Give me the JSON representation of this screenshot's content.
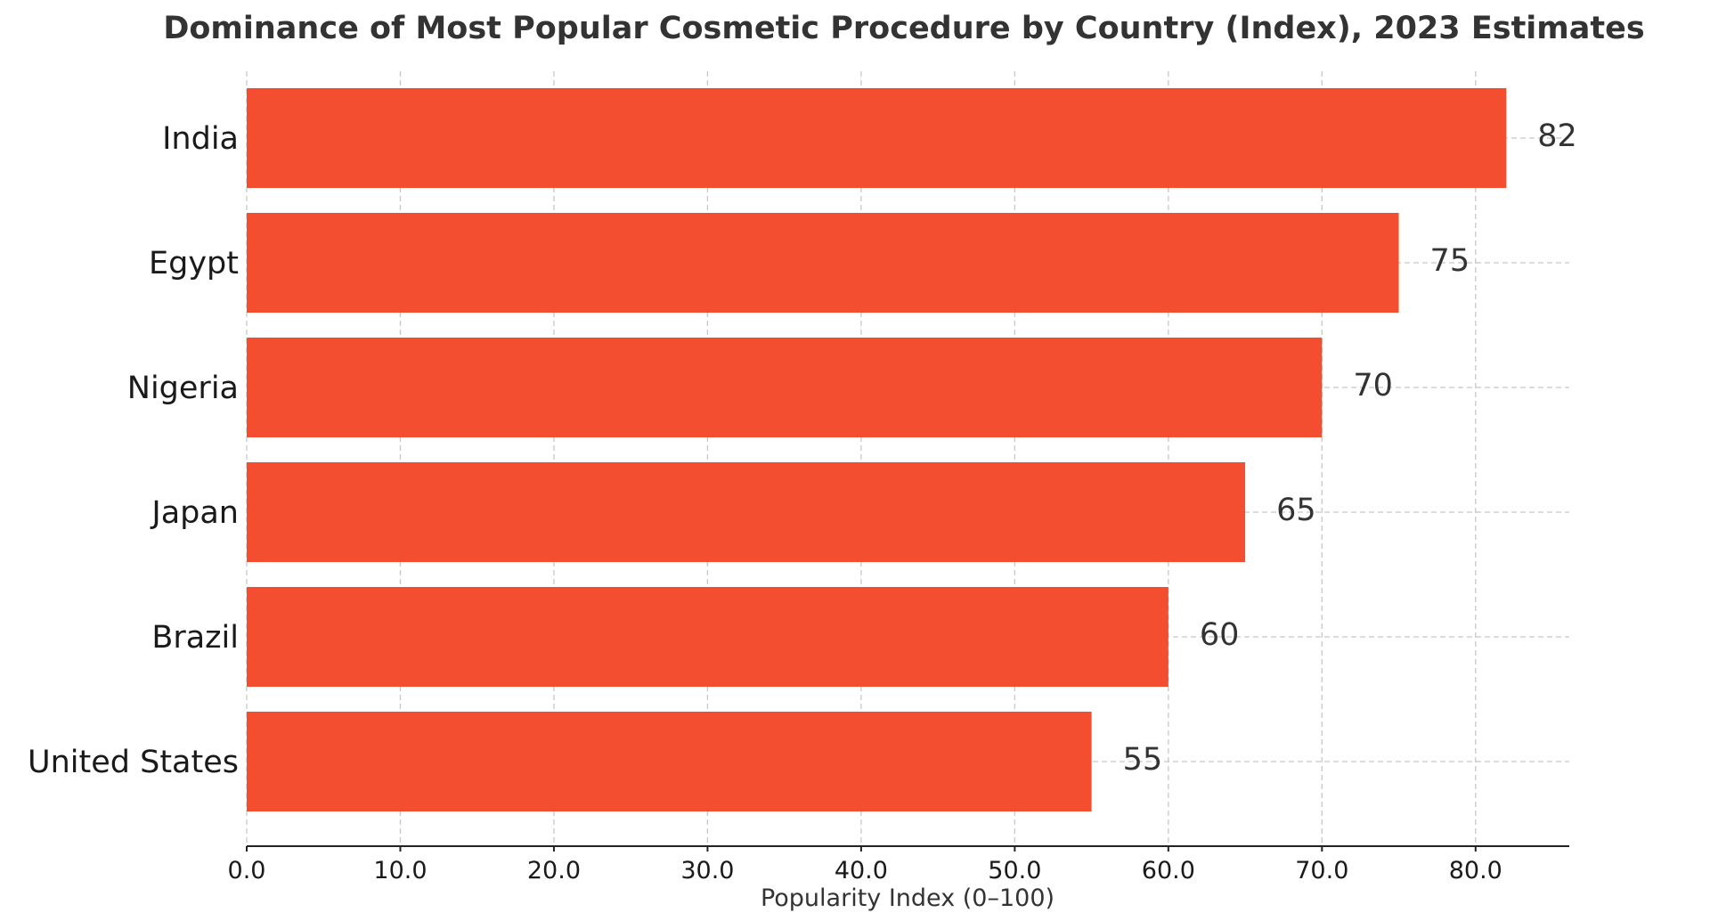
{
  "chart_data": {
    "type": "bar",
    "orientation": "horizontal",
    "title": "Dominance of Most Popular Cosmetic Procedure by Country (Index), 2023 Estimates",
    "xlabel": "Popularity Index (0–100)",
    "ylabel": "",
    "categories": [
      "India",
      "Egypt",
      "Nigeria",
      "Japan",
      "Brazil",
      "United States"
    ],
    "values": [
      82,
      75,
      70,
      65,
      60,
      55
    ],
    "value_labels": [
      "82",
      "75",
      "70",
      "65",
      "60",
      "55"
    ],
    "xlim": [
      0,
      86.1
    ],
    "x_ticks": [
      0,
      10,
      20,
      30,
      40,
      50,
      60,
      70,
      80
    ],
    "x_tick_labels": [
      "0.0",
      "10.0",
      "20.0",
      "30.0",
      "40.0",
      "50.0",
      "60.0",
      "70.0",
      "80.0"
    ],
    "grid": true,
    "bar_color": "#f24e2f"
  }
}
